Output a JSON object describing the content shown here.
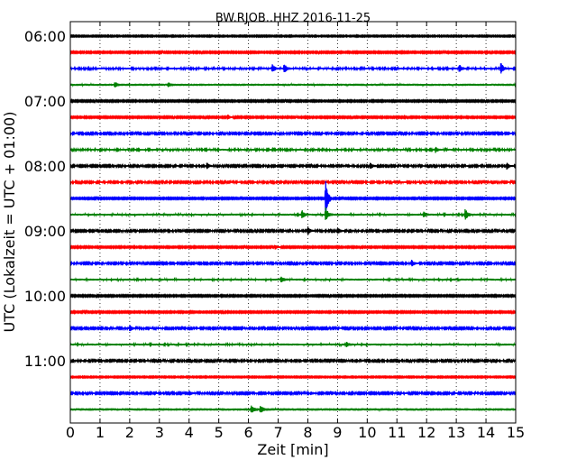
{
  "chart_data": {
    "type": "line",
    "title": "BW.RJOB..HHZ 2016-11-25",
    "xlabel": "Zeit  [min]",
    "ylabel": "UTC (Lokalzeit = UTC + 01:00)",
    "xlim": [
      0,
      15
    ],
    "x_ticks": [
      "0",
      "1",
      "2",
      "3",
      "4",
      "5",
      "6",
      "7",
      "8",
      "9",
      "10",
      "11",
      "12",
      "13",
      "14",
      "15"
    ],
    "y_ticks": [
      "06:00",
      "07:00",
      "08:00",
      "09:00",
      "10:00",
      "11:00"
    ],
    "trace_interval_min": 15,
    "start_time": "06:00",
    "grid": "vertical dotted",
    "trace_colors": [
      "#000000",
      "#ff0000",
      "#0000ff",
      "#008000"
    ],
    "traces": [
      {
        "start": "06:00",
        "color": "#000000",
        "noise": 0.5,
        "events": []
      },
      {
        "start": "06:15",
        "color": "#ff0000",
        "noise": 0.6,
        "events": []
      },
      {
        "start": "06:30",
        "color": "#0000ff",
        "noise": 0.8,
        "events": [
          {
            "t": 6.8,
            "amp": 5
          },
          {
            "t": 7.2,
            "amp": 6
          },
          {
            "t": 13.1,
            "amp": 5
          },
          {
            "t": 14.5,
            "amp": 7
          }
        ]
      },
      {
        "start": "06:45",
        "color": "#008000",
        "noise": 1.0,
        "events": [
          {
            "t": 1.5,
            "amp": 3
          },
          {
            "t": 3.3,
            "amp": 2
          }
        ]
      },
      {
        "start": "07:00",
        "color": "#000000",
        "noise": 0.6,
        "events": []
      },
      {
        "start": "07:15",
        "color": "#ff0000",
        "noise": 0.6,
        "events": [
          {
            "t": 5.3,
            "amp": 3
          }
        ]
      },
      {
        "start": "07:30",
        "color": "#0000ff",
        "noise": 0.7,
        "events": []
      },
      {
        "start": "07:45",
        "color": "#008000",
        "noise": 0.8,
        "events": [
          {
            "t": 12.3,
            "amp": 3
          }
        ]
      },
      {
        "start": "08:00",
        "color": "#000000",
        "noise": 0.7,
        "events": [
          {
            "t": 4.6,
            "amp": 4
          },
          {
            "t": 10.1,
            "amp": 4
          },
          {
            "t": 14.7,
            "amp": 4
          }
        ]
      },
      {
        "start": "08:15",
        "color": "#ff0000",
        "noise": 0.7,
        "events": []
      },
      {
        "start": "08:30",
        "color": "#0000ff",
        "noise": 0.6,
        "events": [
          {
            "t": 8.6,
            "amp": 26
          }
        ]
      },
      {
        "start": "08:45",
        "color": "#008000",
        "noise": 0.9,
        "events": [
          {
            "t": 7.8,
            "amp": 5
          },
          {
            "t": 8.6,
            "amp": 8
          },
          {
            "t": 11.9,
            "amp": 3
          },
          {
            "t": 13.3,
            "amp": 7
          }
        ]
      },
      {
        "start": "09:00",
        "color": "#000000",
        "noise": 0.7,
        "events": [
          {
            "t": 8.0,
            "amp": 5
          },
          {
            "t": 9.0,
            "amp": 4
          }
        ]
      },
      {
        "start": "09:15",
        "color": "#ff0000",
        "noise": 0.6,
        "events": [
          {
            "t": 6.9,
            "amp": 3
          }
        ]
      },
      {
        "start": "09:30",
        "color": "#0000ff",
        "noise": 0.7,
        "events": [
          {
            "t": 11.5,
            "amp": 4
          }
        ]
      },
      {
        "start": "09:45",
        "color": "#008000",
        "noise": 0.9,
        "events": [
          {
            "t": 7.1,
            "amp": 3
          }
        ]
      },
      {
        "start": "10:00",
        "color": "#000000",
        "noise": 0.6,
        "events": []
      },
      {
        "start": "10:15",
        "color": "#ff0000",
        "noise": 0.6,
        "events": []
      },
      {
        "start": "10:30",
        "color": "#0000ff",
        "noise": 0.7,
        "events": [
          {
            "t": 2.0,
            "amp": 4
          }
        ]
      },
      {
        "start": "10:45",
        "color": "#008000",
        "noise": 0.9,
        "events": [
          {
            "t": 9.3,
            "amp": 3
          }
        ]
      },
      {
        "start": "11:00",
        "color": "#000000",
        "noise": 0.7,
        "events": []
      },
      {
        "start": "11:15",
        "color": "#ff0000",
        "noise": 0.5,
        "events": []
      },
      {
        "start": "11:30",
        "color": "#0000ff",
        "noise": 0.7,
        "events": [
          {
            "t": 4.0,
            "amp": 3
          },
          {
            "t": 8.1,
            "amp": 2
          }
        ]
      },
      {
        "start": "11:45",
        "color": "#008000",
        "noise": 1.1,
        "events": [
          {
            "t": 6.1,
            "amp": 4
          },
          {
            "t": 6.4,
            "amp": 4
          }
        ]
      }
    ]
  }
}
